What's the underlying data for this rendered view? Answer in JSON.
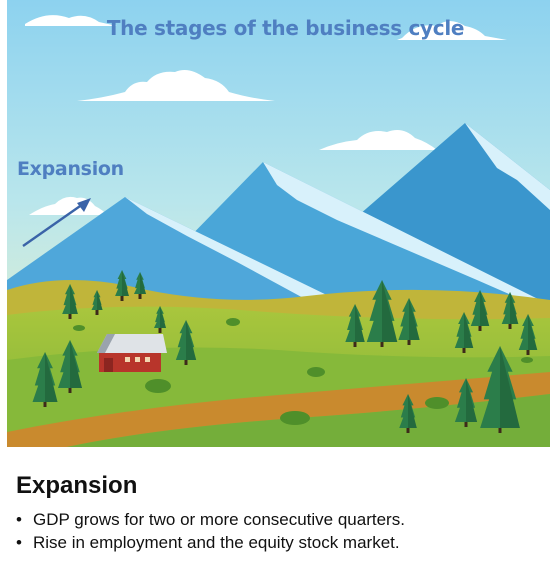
{
  "scene": {
    "title": "The stages of the business cycle",
    "stage_label": "Expansion",
    "arrow_direction": "up-right",
    "colors": {
      "sky_top": "#8fd3f0",
      "sky_bottom": "#f3f4c6",
      "mountain_light": "#4aa6d8",
      "mountain_dark": "#3592c9",
      "snow": "#d8f1fb",
      "meadow": "#8dbb3a",
      "meadow_dark": "#5f9a2a",
      "path": "#c7862c",
      "tree": "#2b7d4a",
      "barn_roof": "#d9dee3",
      "barn_wall": "#b8352b",
      "label_blue": "#4f7fc1"
    },
    "icons": [
      "cloud-icon",
      "arrow-up-right-icon",
      "barn-icon",
      "pine-tree-icon",
      "bush-icon"
    ]
  },
  "caption": {
    "heading": "Expansion",
    "bullet_symbol": "•",
    "bullets": [
      "GDP grows for two or more consecutive quarters.",
      "Rise in employment and the equity stock market."
    ]
  }
}
